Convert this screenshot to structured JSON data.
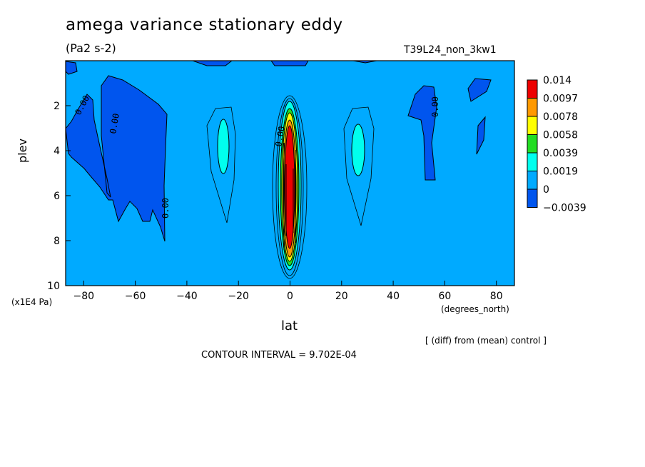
{
  "header": {
    "title": "amega variance stationary eddy",
    "units": "(Pa2 s-2)",
    "run_name": "T39L24_non_3kw1"
  },
  "footer": {
    "diff_note": "[ (diff) from (mean) control ]",
    "contour_interval": "CONTOUR INTERVAL = 9.702E-04"
  },
  "chart_data": {
    "type": "heatmap",
    "title": "amega variance stationary eddy",
    "xlabel": "lat",
    "x_units": "(degrees_north)",
    "ylabel": "plev",
    "y_units": "(x1E4 Pa)",
    "xlim": [
      -87,
      87
    ],
    "ylim": [
      10,
      0
    ],
    "x_ticks": [
      -80,
      -60,
      -40,
      -20,
      0,
      20,
      40,
      60,
      80
    ],
    "x_tick_labels": [
      "−80",
      "−60",
      "−40",
      "−20",
      "0",
      "20",
      "40",
      "60",
      "80"
    ],
    "y_ticks": [
      2,
      4,
      6,
      8,
      10
    ],
    "y_tick_labels": [
      "2",
      "4",
      "6",
      "8",
      "10"
    ],
    "colorbar": {
      "labels": [
        "0.014",
        "0.0097",
        "0.0078",
        "0.0058",
        "0.0039",
        "0.0019",
        "0",
        "−0.0039"
      ],
      "colors": [
        "#ee0000",
        "#ff9900",
        "#ffff00",
        "#22dd22",
        "#00ffee",
        "#00aaff",
        "#0055ee"
      ]
    },
    "colors": {
      "background_field": "#00aaff",
      "negative": "#0055ee",
      "low_positive": "#00ffee",
      "mid": "#22dd22",
      "mid_high": "#ffff00",
      "high": "#ff9900",
      "max": "#ee0000"
    },
    "contour_labels": [
      "0.00",
      "0.00",
      "0.00",
      "0.00",
      "0.00"
    ],
    "features": [
      {
        "label": "negative region",
        "lat_range": [
          -87,
          -48
        ],
        "plev_range": [
          0.8,
          8.0
        ],
        "value": "<0"
      },
      {
        "label": "negative region",
        "lat_range": [
          48,
          82
        ],
        "plev_range": [
          1.0,
          5.5
        ],
        "value": "<0"
      },
      {
        "label": "equatorial maximum",
        "lat_center": 0,
        "plev_range": [
          2.3,
          9.5
        ],
        "peak": 0.014
      },
      {
        "label": "weak positive",
        "lat_center": -26,
        "plev_range": [
          2.9,
          5.0
        ],
        "value": 0.0019
      },
      {
        "label": "weak positive",
        "lat_center": 28,
        "plev_range": [
          2.9,
          5.0
        ],
        "value": 0.0019
      }
    ]
  }
}
